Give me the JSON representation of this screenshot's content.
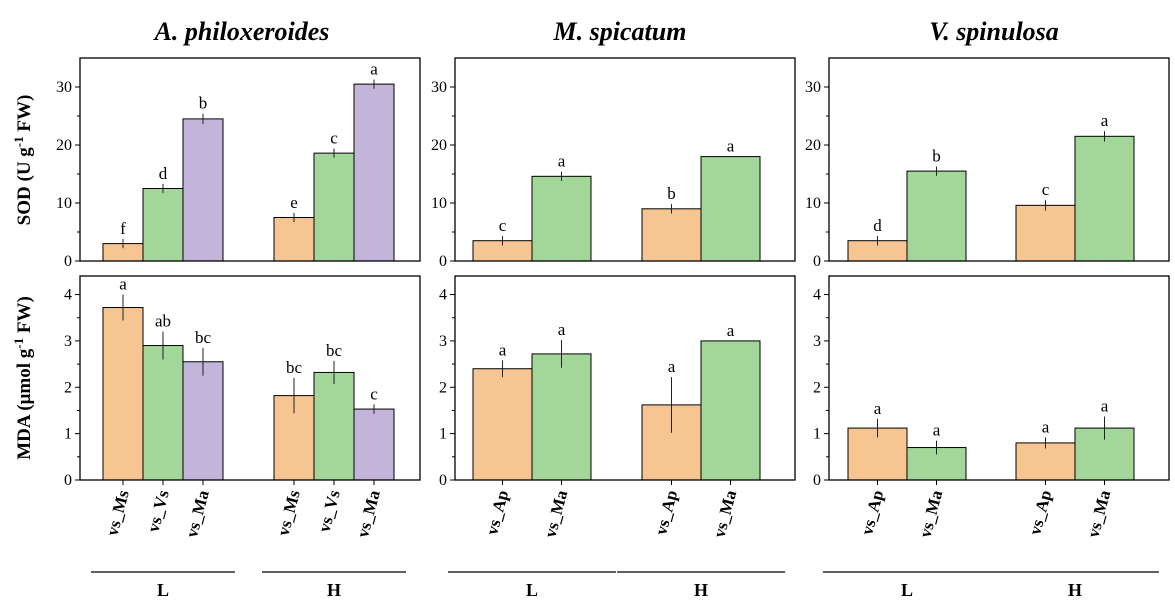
{
  "colors": {
    "L": "#f7c592",
    "V": "#a3d699",
    "M": "#c3b4da"
  },
  "panels_meta": {
    "sod_ylabel": {
      "main": "SOD (U g",
      "sup": "-1",
      "rest": " FW)"
    },
    "mda_ylabel": {
      "main": "MDA (μmol g",
      "sup": "-1",
      "rest": " FW)"
    },
    "group_labels": [
      "L",
      "H"
    ]
  },
  "chart_data": [
    {
      "type": "bar",
      "title": "A. philoxeroides",
      "row": "SOD",
      "ylim": [
        0,
        35
      ],
      "yticks": [
        0,
        10,
        20,
        30
      ],
      "groups": [
        "L",
        "H"
      ],
      "categories": [
        "vs_Ms",
        "vs_Vs",
        "vs_Ma"
      ],
      "bar_colors": [
        "#f7c592",
        "#a3d699",
        "#c3b4da"
      ],
      "values": [
        [
          3.0,
          12.5,
          24.5
        ],
        [
          7.5,
          18.6,
          30.5
        ]
      ],
      "errors": [
        [
          0.8,
          0.8,
          0.9
        ],
        [
          0.8,
          0.8,
          0.8
        ]
      ],
      "letters": [
        [
          "f",
          "d",
          "b"
        ],
        [
          "e",
          "c",
          "a"
        ]
      ]
    },
    {
      "type": "bar",
      "title": "M. spicatum",
      "row": "SOD",
      "ylim": [
        0,
        35
      ],
      "yticks": [
        0,
        10,
        20,
        30
      ],
      "groups": [
        "L",
        "H"
      ],
      "categories": [
        "vs_Ap",
        "vs_Ma"
      ],
      "bar_colors": [
        "#f7c592",
        "#a3d699"
      ],
      "values": [
        [
          3.5,
          14.6
        ],
        [
          9.0,
          18.0
        ]
      ],
      "errors": [
        [
          0.8,
          0.8
        ],
        [
          0.8,
          0.0
        ]
      ],
      "letters": [
        [
          "c",
          "a"
        ],
        [
          "b",
          "a"
        ]
      ]
    },
    {
      "type": "bar",
      "title": "V. spinulosa",
      "row": "SOD",
      "ylim": [
        0,
        35
      ],
      "yticks": [
        0,
        10,
        20,
        30
      ],
      "groups": [
        "L",
        "H"
      ],
      "categories": [
        "vs_Ap",
        "vs_Ma"
      ],
      "bar_colors": [
        "#f7c592",
        "#a3d699"
      ],
      "values": [
        [
          3.5,
          15.5
        ],
        [
          9.6,
          21.5
        ]
      ],
      "errors": [
        [
          0.8,
          0.8
        ],
        [
          0.9,
          0.9
        ]
      ],
      "letters": [
        [
          "d",
          "b"
        ],
        [
          "c",
          "a"
        ]
      ]
    },
    {
      "type": "bar",
      "row": "MDA",
      "ylim": [
        0,
        4.4
      ],
      "yticks": [
        0,
        1,
        2,
        3,
        4
      ],
      "groups": [
        "L",
        "H"
      ],
      "categories": [
        "vs_Ms",
        "vs_Vs",
        "vs_Ma"
      ],
      "bar_colors": [
        "#f7c592",
        "#a3d699",
        "#c3b4da"
      ],
      "values": [
        [
          3.72,
          2.9,
          2.55
        ],
        [
          1.82,
          2.32,
          1.53
        ]
      ],
      "errors": [
        [
          0.28,
          0.3,
          0.3
        ],
        [
          0.38,
          0.25,
          0.1
        ]
      ],
      "letters": [
        [
          "a",
          "ab",
          "bc"
        ],
        [
          "bc",
          "bc",
          "c"
        ]
      ]
    },
    {
      "type": "bar",
      "row": "MDA",
      "ylim": [
        0,
        4.4
      ],
      "yticks": [
        0,
        1,
        2,
        3,
        4
      ],
      "groups": [
        "L",
        "H"
      ],
      "categories": [
        "vs_Ap",
        "vs_Ma"
      ],
      "bar_colors": [
        "#f7c592",
        "#a3d699"
      ],
      "values": [
        [
          2.4,
          2.72
        ],
        [
          1.62,
          3.0
        ]
      ],
      "errors": [
        [
          0.18,
          0.3
        ],
        [
          0.6,
          0.0
        ]
      ],
      "letters": [
        [
          "a",
          "a"
        ],
        [
          "a",
          "a"
        ]
      ]
    },
    {
      "type": "bar",
      "row": "MDA",
      "ylim": [
        0,
        4.4
      ],
      "yticks": [
        0,
        1,
        2,
        3,
        4
      ],
      "groups": [
        "L",
        "H"
      ],
      "categories": [
        "vs_Ap",
        "vs_Ma"
      ],
      "bar_colors": [
        "#f7c592",
        "#a3d699"
      ],
      "values": [
        [
          1.12,
          0.7
        ],
        [
          0.8,
          1.12
        ]
      ],
      "errors": [
        [
          0.2,
          0.15
        ],
        [
          0.12,
          0.25
        ]
      ],
      "letters": [
        [
          "a",
          "a"
        ],
        [
          "a",
          "a"
        ]
      ]
    }
  ]
}
